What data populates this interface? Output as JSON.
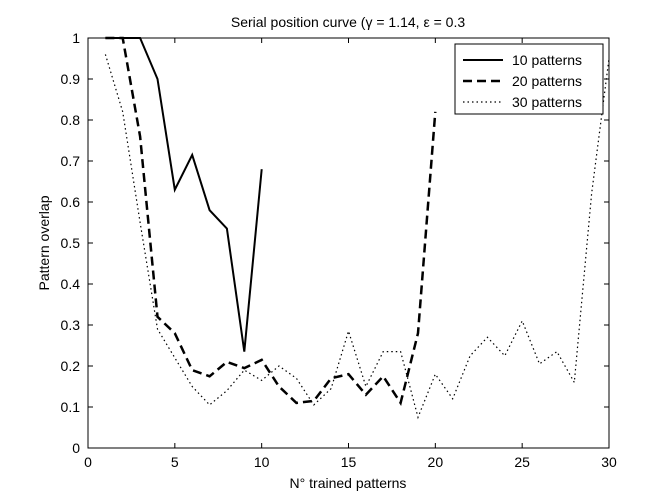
{
  "chart_data": {
    "type": "line",
    "title": "Serial position curve (γ = 1.14, ε = 0.3",
    "xlabel": "N° trained patterns",
    "ylabel": "Pattern overlap",
    "xlim": [
      0,
      30
    ],
    "ylim": [
      0,
      1
    ],
    "xticks": [
      "0",
      "5",
      "10",
      "15",
      "20",
      "25",
      "30"
    ],
    "yticks": [
      "0",
      "0.1",
      "0.2",
      "0.3",
      "0.4",
      "0.5",
      "0.6",
      "0.7",
      "0.8",
      "0.9",
      "1"
    ],
    "grid": false,
    "legend_position": "top-right",
    "series": [
      {
        "name": "10 patterns",
        "style": "solid",
        "color": "#000000",
        "x": [
          1,
          2,
          3,
          4,
          5,
          6,
          7,
          8,
          9,
          10
        ],
        "y": [
          1.0,
          1.0,
          1.0,
          0.9,
          0.63,
          0.715,
          0.58,
          0.535,
          0.235,
          0.68
        ]
      },
      {
        "name": "20 patterns",
        "style": "dashed",
        "color": "#000000",
        "x": [
          1,
          2,
          3,
          4,
          5,
          6,
          7,
          8,
          9,
          10,
          11,
          12,
          13,
          14,
          15,
          16,
          17,
          18,
          19,
          20
        ],
        "y": [
          1.0,
          1.0,
          0.76,
          0.32,
          0.28,
          0.19,
          0.175,
          0.21,
          0.195,
          0.215,
          0.15,
          0.11,
          0.115,
          0.17,
          0.18,
          0.13,
          0.175,
          0.11,
          0.28,
          0.82
        ]
      },
      {
        "name": "30 patterns",
        "style": "dotted",
        "color": "#000000",
        "x": [
          1,
          2,
          3,
          4,
          5,
          6,
          7,
          8,
          9,
          10,
          11,
          12,
          13,
          14,
          15,
          16,
          17,
          18,
          19,
          20,
          21,
          22,
          23,
          24,
          25,
          26,
          27,
          28,
          29,
          30
        ],
        "y": [
          0.96,
          0.82,
          0.55,
          0.29,
          0.22,
          0.15,
          0.105,
          0.14,
          0.19,
          0.165,
          0.2,
          0.17,
          0.105,
          0.145,
          0.285,
          0.15,
          0.235,
          0.235,
          0.075,
          0.18,
          0.12,
          0.225,
          0.27,
          0.225,
          0.31,
          0.205,
          0.235,
          0.16,
          0.62,
          0.95
        ]
      }
    ]
  }
}
